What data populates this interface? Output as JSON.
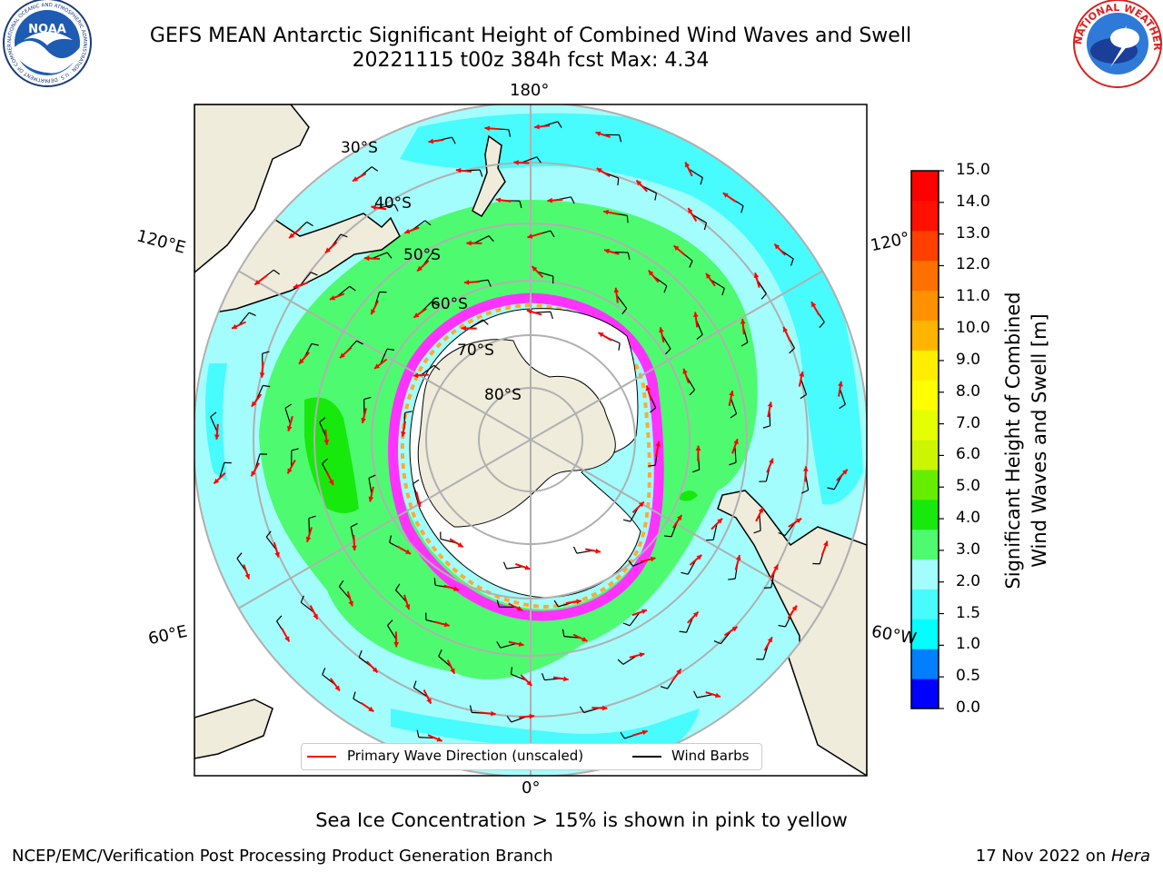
{
  "title": {
    "line1": "GEFS MEAN Antarctic Significant Height of Combined Wind Waves and Swell",
    "line2": "20221115 t00z 384h fcst   Max: 4.34"
  },
  "map": {
    "projection": "south-polar-stereographic",
    "longitude_labels": {
      "top": "180°",
      "bottom": "0°",
      "left_upper": "120°E",
      "left_lower": "60°E",
      "right_upper": "120°",
      "right_lower": "60°W"
    },
    "latitude_labels": [
      "30°S",
      "40°S",
      "50°S",
      "60°S",
      "70°S",
      "80°S"
    ],
    "land_color": "#efecdc",
    "ocean_bands": [
      {
        "range_m": "1.5-2.0",
        "color": "#48fbfd"
      },
      {
        "range_m": "2.0-3.0",
        "color": "#a3fdfd"
      },
      {
        "range_m": "3.0-4.0",
        "color": "#4efb70"
      },
      {
        "range_m": "4.0-5.0",
        "color": "#17e90c"
      }
    ],
    "sea_ice_colors": [
      "#ff33ff",
      "#ff77aa",
      "#ffaa33",
      "#ffe040"
    ],
    "primary_wave_arrow_color": "#ff0000",
    "wind_barb_color": "#000000"
  },
  "colorbar": {
    "label_line1": "Significant Height of Combined",
    "label_line2": "Wind Waves and Swell [m]",
    "ticks": [
      "15.0",
      "14.0",
      "13.0",
      "12.0",
      "11.0",
      "10.0",
      "9.0",
      "8.0",
      "7.0",
      "6.0",
      "5.0",
      "4.0",
      "3.0",
      "2.0",
      "1.5",
      "1.0",
      "0.5",
      "0.0"
    ],
    "colors": [
      "#0000ff",
      "#0080ff",
      "#00ffff",
      "#48fbfd",
      "#a3fdfd",
      "#4efb70",
      "#17e90c",
      "#66ee00",
      "#ccf500",
      "#e6ff00",
      "#ffff00",
      "#ffee00",
      "#ffb400",
      "#ff9000",
      "#ff7000",
      "#ff4000",
      "#ff1000",
      "#ff0000"
    ]
  },
  "legend": {
    "primary_wave": "Primary Wave Direction (unscaled)",
    "wind_barbs": "Wind Barbs"
  },
  "note": "Sea Ice Concentration > 15% is shown in pink to yellow",
  "footer": {
    "left": "NCEP/EMC/Verification Post Processing Product Generation Branch",
    "date": "17 Nov 2022 on ",
    "machine": "Hera"
  },
  "logos": {
    "noaa": "NOAA",
    "noaa_ring": "NATIONAL OCEANIC AND ATMOSPHERIC ADMINISTRATION · U.S. DEPARTMENT OF COMMERCE",
    "nws_ring": "NATIONAL WEATHER SERVICE"
  }
}
